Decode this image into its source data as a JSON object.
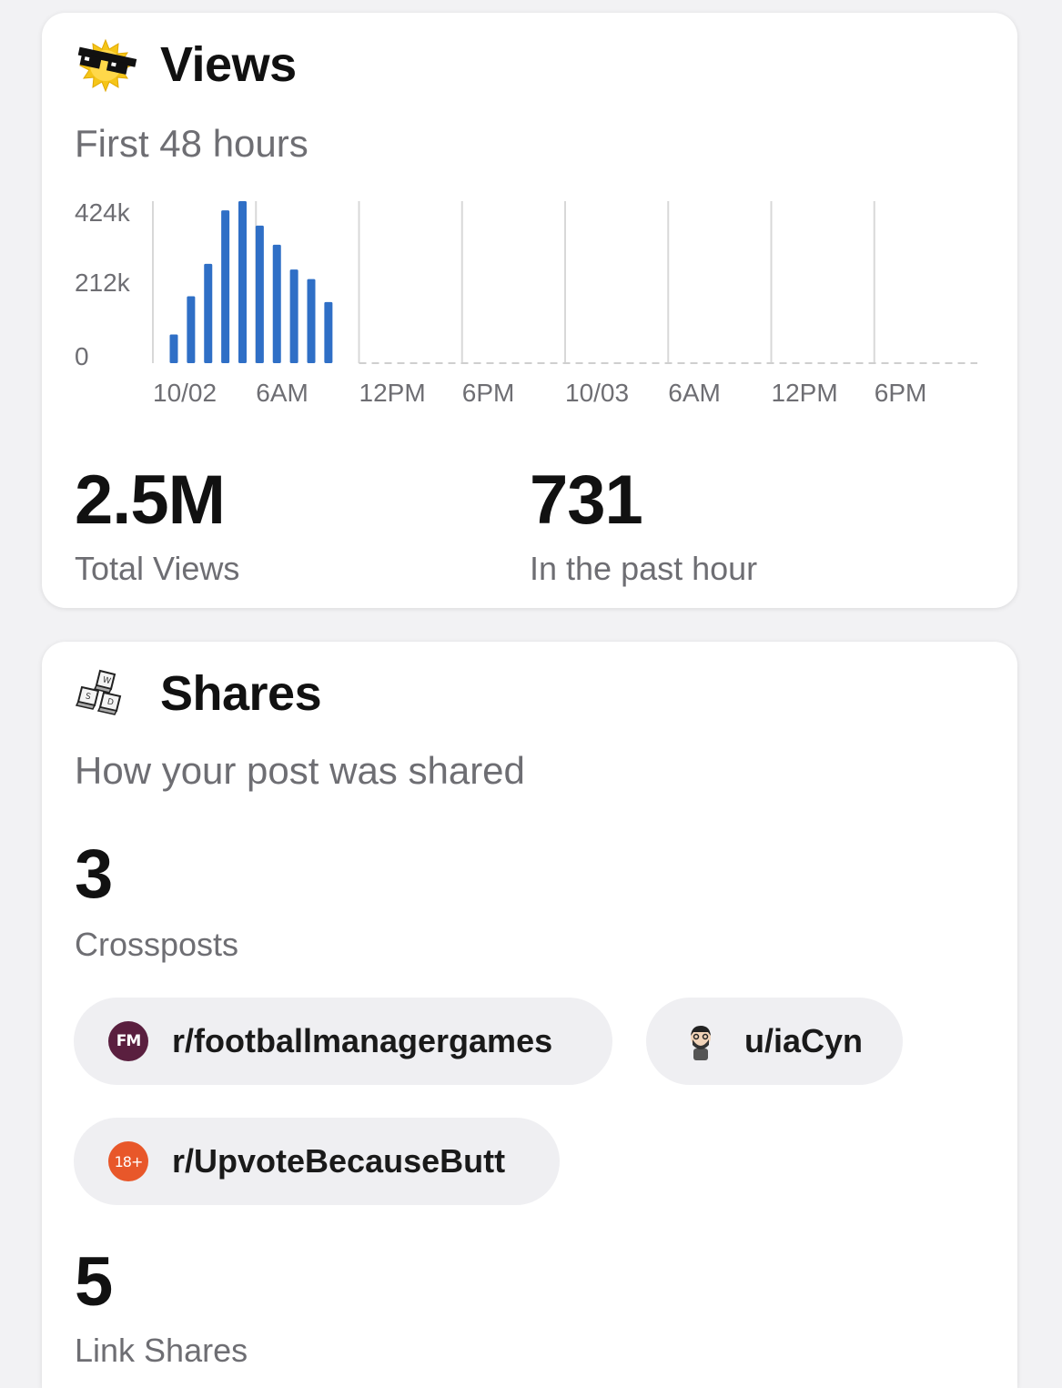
{
  "views": {
    "title": "Views",
    "icon": "sunglasses-sun-icon",
    "subtitle": "First 48 hours",
    "total_value": "2.5M",
    "total_label": "Total Views",
    "past_hour_value": "731",
    "past_hour_label": "In the past hour"
  },
  "shares": {
    "title": "Shares",
    "icon": "keyboard-keys-icon",
    "subtitle": "How your post was shared",
    "crossposts_value": "3",
    "crossposts_label": "Crossposts",
    "chips": [
      {
        "label": "r/footballmanagergames",
        "icon": "fm-community-icon",
        "icon_text": "FM",
        "color": "#5a1f3f"
      },
      {
        "label": "u/iaCyn",
        "icon": "user-avatar-icon",
        "color": "#555555"
      },
      {
        "label": "r/UpvoteBecauseButt",
        "icon": "nsfw-18-icon",
        "icon_text": "18+",
        "color": "#e8572a"
      }
    ],
    "link_shares_value": "5",
    "link_shares_label": "Link Shares"
  },
  "chart_data": {
    "type": "bar",
    "bar_color": "#2f6fc6",
    "ylim": [
      0,
      424000
    ],
    "y_ticks": [
      {
        "value": 424000,
        "label": "424k"
      },
      {
        "value": 212000,
        "label": "212k"
      },
      {
        "value": 0,
        "label": "0"
      }
    ],
    "x_tick_labels": [
      "10/02",
      "6AM",
      "12PM",
      "6PM",
      "10/03",
      "6AM",
      "12PM",
      "6PM"
    ],
    "x_hours_total": 48,
    "values": [
      75000,
      175000,
      260000,
      400000,
      424000,
      360000,
      310000,
      245000,
      220000,
      160000
    ],
    "grid": true
  }
}
